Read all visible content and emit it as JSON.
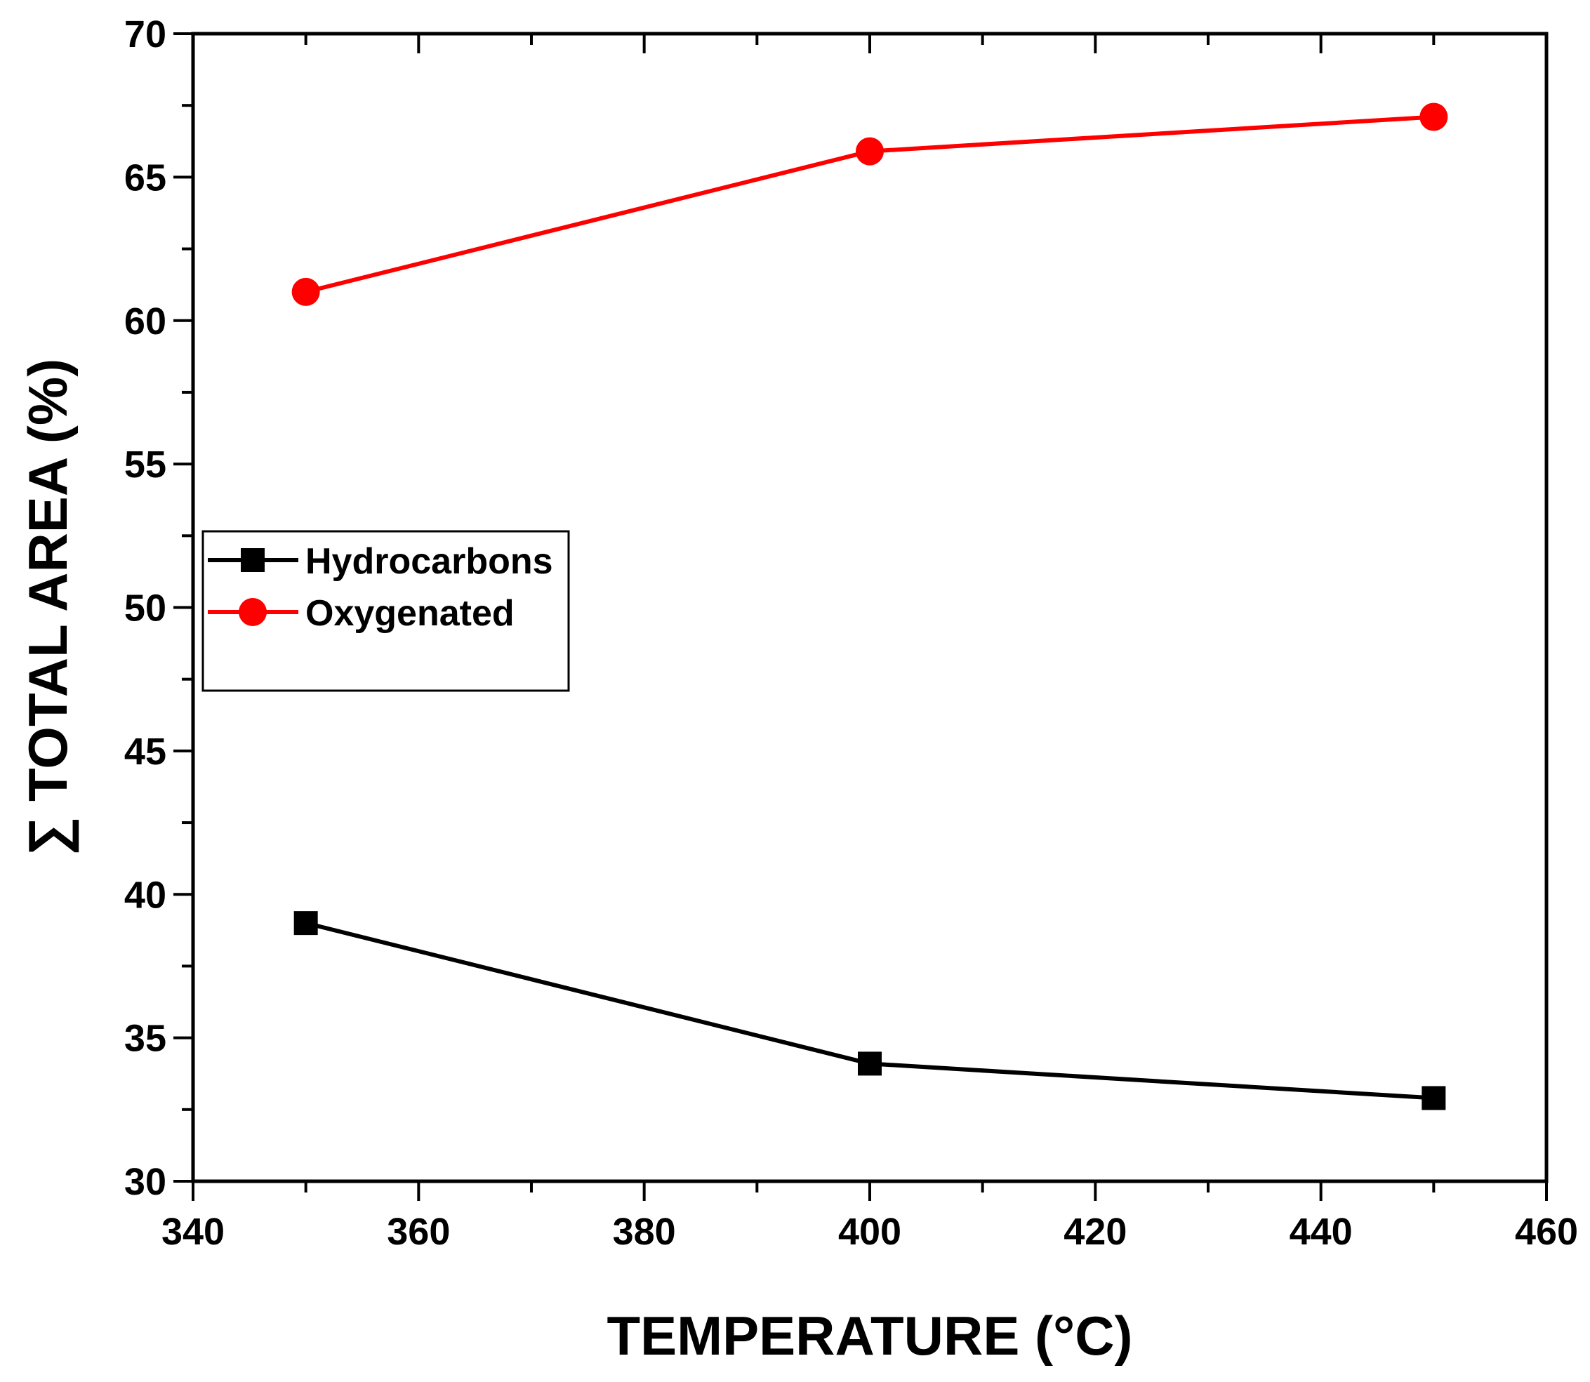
{
  "chart_data": {
    "type": "line",
    "title": "",
    "xlabel": "TEMPERATURE (°C)",
    "ylabel": "∑ TOTAL  AREA (%)",
    "xlim": [
      340,
      460
    ],
    "ylim": [
      30,
      70
    ],
    "xticks": [
      340,
      360,
      380,
      400,
      420,
      440,
      460
    ],
    "yticks": [
      30,
      35,
      40,
      45,
      50,
      55,
      60,
      65,
      70
    ],
    "x_minor_step": 10,
    "y_minor_step": 2.5,
    "grid": false,
    "legend_position": "center-left",
    "x": [
      350,
      400,
      450
    ],
    "series": [
      {
        "name": "Hydrocarbons",
        "values": [
          39.0,
          34.1,
          32.9
        ],
        "color": "#000000",
        "marker": "square"
      },
      {
        "name": "Oxygenated",
        "values": [
          61.0,
          65.9,
          67.1
        ],
        "color": "#ff0000",
        "marker": "circle"
      }
    ]
  }
}
